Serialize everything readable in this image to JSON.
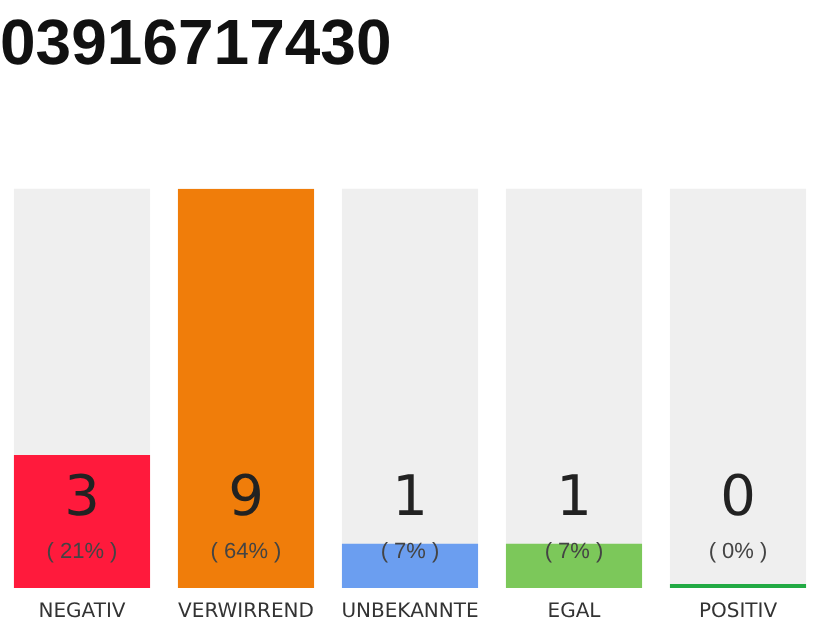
{
  "chart_data": {
    "type": "bar",
    "title": "03916717430",
    "categories": [
      "NEGATIV",
      "VERWIRREND",
      "UNBEKANNTE",
      "EGAL",
      "POSITIV"
    ],
    "values": [
      3,
      9,
      1,
      1,
      0
    ],
    "colors": [
      "#ff1a3c",
      "#f07d0a",
      "#6b9ef0",
      "#7cc85a",
      "#22aa44"
    ],
    "ylim": [
      0,
      9
    ],
    "tick_labels": "x",
    "grid": false,
    "legend": false,
    "data_labels": true,
    "annotations": [
      "( 21% )",
      "( 64% )",
      "( 7% )",
      "( 7% )",
      "( 0% )"
    ]
  }
}
